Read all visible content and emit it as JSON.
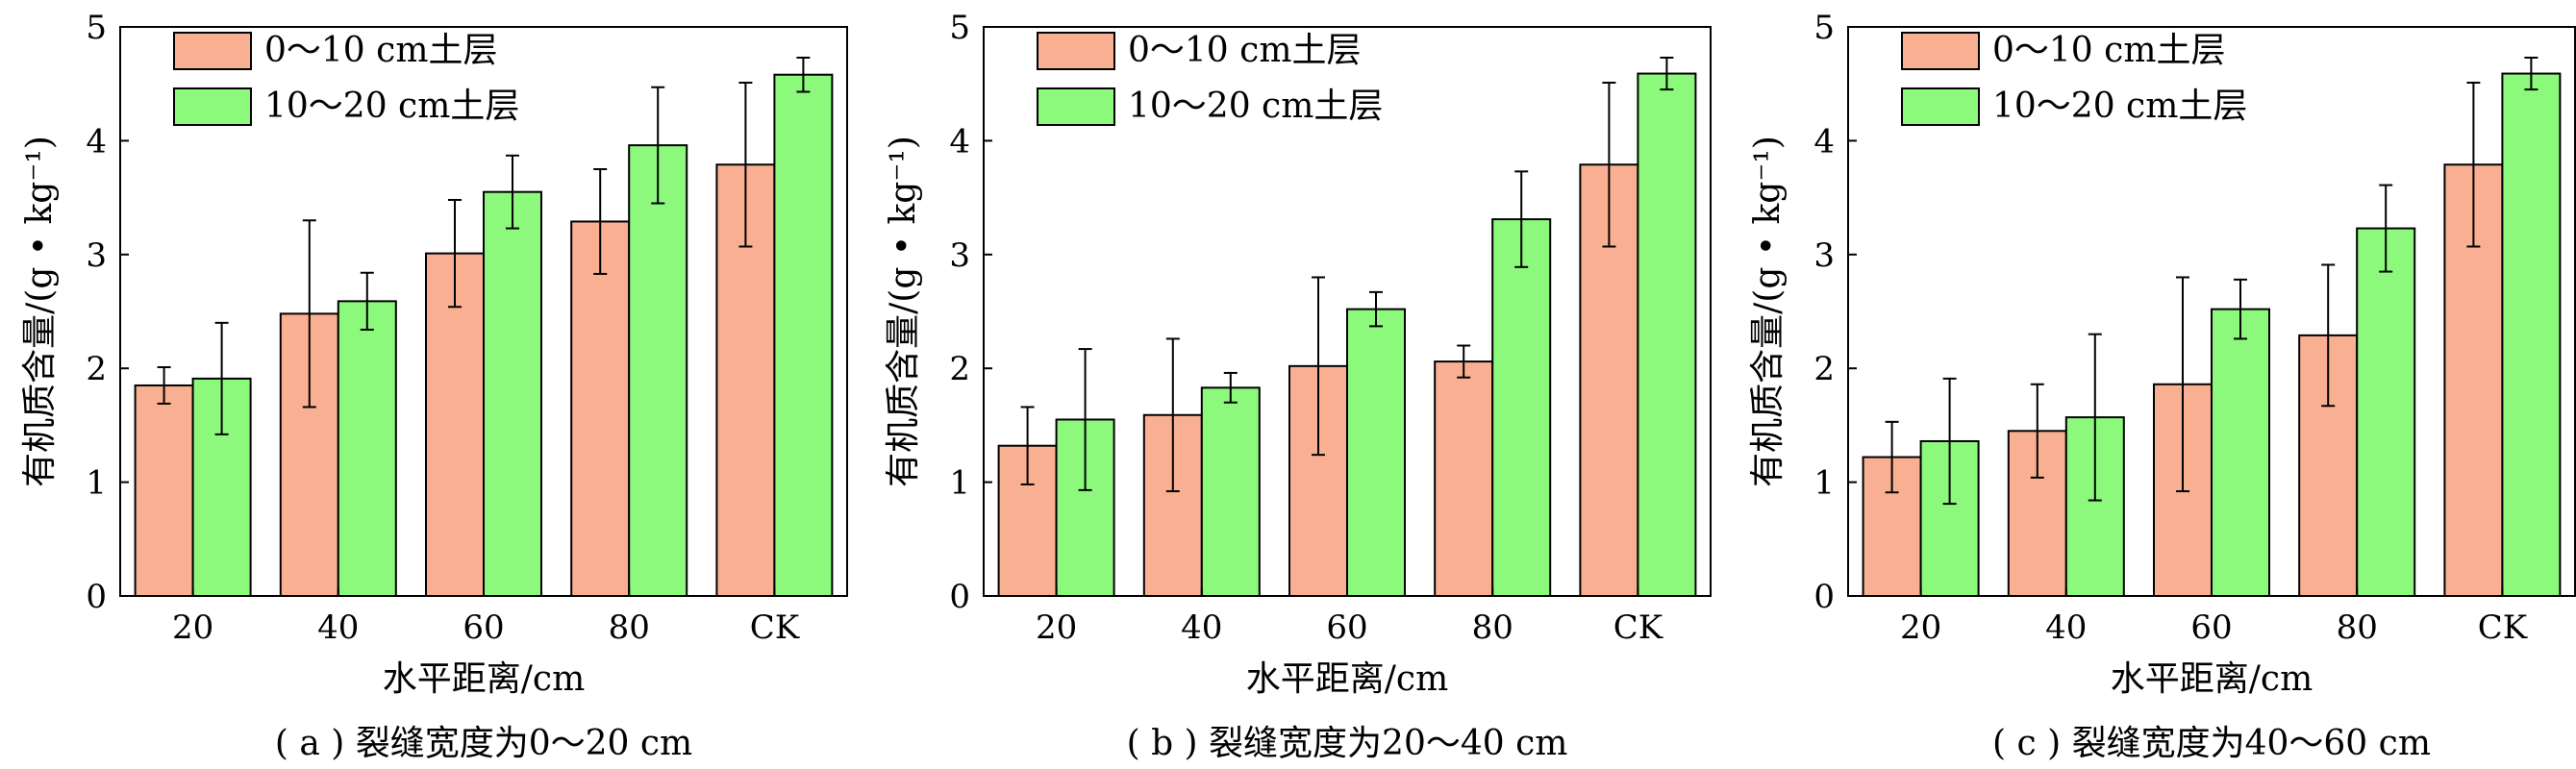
{
  "chart_data": [
    {
      "type": "bar",
      "caption": "( a ) 裂缝宽度为0～20 cm",
      "xlabel": "水平距离/cm",
      "ylabel": "有机质含量/(g • kg⁻¹)",
      "ylim": [
        0,
        5
      ],
      "yticks": [
        "0",
        "1",
        "2",
        "3",
        "4",
        "5"
      ],
      "categories": [
        "20",
        "40",
        "60",
        "80",
        "CK"
      ],
      "legend_position": "top-left",
      "series": [
        {
          "name": "0～10 cm土层",
          "color": "#f9b092",
          "values": [
            1.85,
            2.48,
            3.01,
            3.29,
            3.79
          ],
          "errors": [
            0.16,
            0.82,
            0.47,
            0.46,
            0.72
          ]
        },
        {
          "name": "10～20 cm土层",
          "color": "#8cf97c",
          "values": [
            1.91,
            2.59,
            3.55,
            3.96,
            4.58
          ],
          "errors": [
            0.49,
            0.25,
            0.32,
            0.51,
            0.15
          ]
        }
      ]
    },
    {
      "type": "bar",
      "caption": "( b ) 裂缝宽度为20～40 cm",
      "xlabel": "水平距离/cm",
      "ylabel": "有机质含量/(g • kg⁻¹)",
      "ylim": [
        0,
        5
      ],
      "yticks": [
        "0",
        "1",
        "2",
        "3",
        "4",
        "5"
      ],
      "categories": [
        "20",
        "40",
        "60",
        "80",
        "CK"
      ],
      "legend_position": "top-left",
      "series": [
        {
          "name": "0～10 cm土层",
          "color": "#f9b092",
          "values": [
            1.32,
            1.59,
            2.02,
            2.06,
            3.79
          ],
          "errors": [
            0.34,
            0.67,
            0.78,
            0.14,
            0.72
          ]
        },
        {
          "name": "10～20 cm土层",
          "color": "#8cf97c",
          "values": [
            1.55,
            1.83,
            2.52,
            3.31,
            4.59
          ],
          "errors": [
            0.62,
            0.13,
            0.15,
            0.42,
            0.14
          ]
        }
      ]
    },
    {
      "type": "bar",
      "caption": "( c ) 裂缝宽度为40～60 cm",
      "xlabel": "水平距离/cm",
      "ylabel": "有机质含量/(g • kg⁻¹)",
      "ylim": [
        0,
        5
      ],
      "yticks": [
        "0",
        "1",
        "2",
        "3",
        "4",
        "5"
      ],
      "categories": [
        "20",
        "40",
        "60",
        "80",
        "CK"
      ],
      "legend_position": "top-left",
      "series": [
        {
          "name": "0～10 cm土层",
          "color": "#f9b092",
          "values": [
            1.22,
            1.45,
            1.86,
            2.29,
            3.79
          ],
          "errors": [
            0.31,
            0.41,
            0.94,
            0.62,
            0.72
          ]
        },
        {
          "name": "10～20 cm土层",
          "color": "#8cf97c",
          "values": [
            1.36,
            1.57,
            2.52,
            3.23,
            4.59
          ],
          "errors": [
            0.55,
            0.73,
            0.26,
            0.38,
            0.14
          ]
        }
      ]
    }
  ]
}
